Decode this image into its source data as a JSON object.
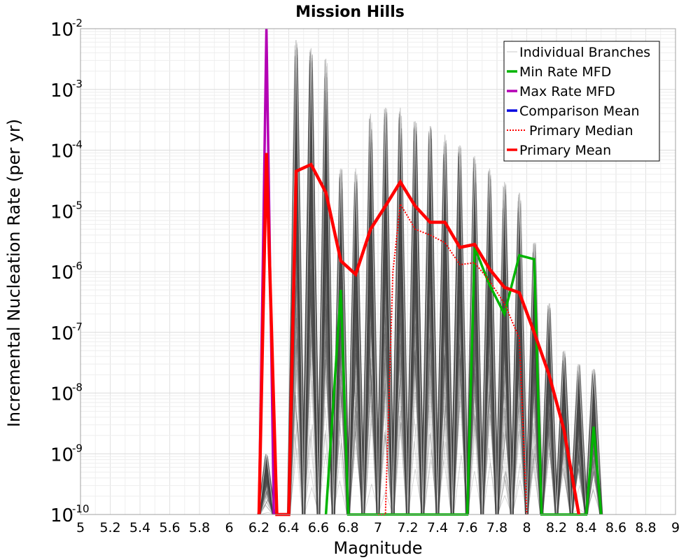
{
  "chart_data": {
    "type": "line",
    "title": "Mission Hills",
    "xlabel": "Magnitude",
    "ylabel": "Incremental Nucleation Rate (per yr)",
    "xlim": [
      5,
      9
    ],
    "ylim": [
      1e-10,
      0.01
    ],
    "yscale": "log",
    "grid": true,
    "legend_position": "top-right",
    "x_ticks": [
      "5",
      "5.2",
      "5.4",
      "5.6",
      "5.8",
      "6",
      "6.2",
      "6.4",
      "6.6",
      "6.8",
      "7",
      "7.2",
      "7.4",
      "7.6",
      "7.8",
      "8",
      "8.2",
      "8.4",
      "8.6",
      "8.8",
      "9"
    ],
    "y_ticks": [
      {
        "base": "10",
        "exp": "-10",
        "value": 1e-10
      },
      {
        "base": "10",
        "exp": "-9",
        "value": 1e-09
      },
      {
        "base": "10",
        "exp": "-8",
        "value": 1e-08
      },
      {
        "base": "10",
        "exp": "-7",
        "value": 1e-07
      },
      {
        "base": "10",
        "exp": "-6",
        "value": 1e-06
      },
      {
        "base": "10",
        "exp": "-5",
        "value": 1e-05
      },
      {
        "base": "10",
        "exp": "-4",
        "value": 0.0001
      },
      {
        "base": "10",
        "exp": "-3",
        "value": 0.001
      },
      {
        "base": "10",
        "exp": "-2",
        "value": 0.01
      }
    ],
    "branch_envelope": {
      "x": [
        6.25,
        6.35,
        6.45,
        6.55,
        6.65,
        6.75,
        6.85,
        6.95,
        7.05,
        7.15,
        7.25,
        7.35,
        7.45,
        7.55,
        7.65,
        7.75,
        7.85,
        7.95,
        8.05,
        8.15,
        8.25,
        8.35,
        8.45
      ],
      "max": [
        1e-09,
        1e-10,
        0.0065,
        0.0048,
        0.0032,
        5e-05,
        5e-05,
        0.0004,
        0.0005,
        0.0005,
        0.0003,
        0.00025,
        0.00018,
        0.00012,
        8e-05,
        5e-05,
        3e-05,
        2e-05,
        3e-06,
        3e-07,
        5e-08,
        3e-08,
        2.5e-08
      ]
    },
    "series": [
      {
        "name": "Individual Branches",
        "color": "#c8c8c8",
        "style": "thin"
      },
      {
        "name": "Min Rate MFD",
        "color": "#00b400",
        "style": "solid",
        "points": [
          [
            6.65,
            1e-10
          ],
          [
            6.75,
            5e-07
          ],
          [
            6.8,
            1e-10
          ],
          [
            7.6,
            1e-10
          ],
          [
            7.65,
            2.5e-06
          ],
          [
            7.75,
            6e-07
          ],
          [
            7.85,
            2e-07
          ],
          [
            7.95,
            1.85e-06
          ],
          [
            8.05,
            1.6e-06
          ],
          [
            8.1,
            1e-10
          ],
          [
            8.4,
            1e-10
          ],
          [
            8.45,
            2.8e-09
          ],
          [
            8.5,
            1e-10
          ]
        ]
      },
      {
        "name": "Max Rate MFD",
        "color": "#b400b4",
        "style": "solid",
        "points": [
          [
            6.2,
            1e-10
          ],
          [
            6.25,
            0.01
          ],
          [
            6.3,
            1e-10
          ]
        ]
      },
      {
        "name": "Comparison Mean",
        "color": "#0000e0",
        "style": "solid",
        "points": []
      },
      {
        "name": "Primary Median",
        "color": "#ff0000",
        "style": "dotted",
        "points": [
          [
            7.0,
            1e-10
          ],
          [
            7.05,
            1e-10
          ],
          [
            7.1,
            1e-06
          ],
          [
            7.15,
            1.3e-05
          ],
          [
            7.25,
            5e-06
          ],
          [
            7.35,
            4e-06
          ],
          [
            7.45,
            3e-06
          ],
          [
            7.55,
            1.3e-06
          ],
          [
            7.65,
            1.4e-06
          ],
          [
            7.75,
            7e-07
          ],
          [
            7.85,
            3e-07
          ],
          [
            7.95,
            8e-08
          ],
          [
            8.0,
            1e-10
          ]
        ]
      },
      {
        "name": "Primary Mean",
        "color": "#ff0000",
        "style": "thick",
        "points": [
          [
            6.2,
            1e-10
          ],
          [
            6.25,
            9e-05
          ],
          [
            6.32,
            1e-10
          ],
          [
            6.4,
            1e-10
          ],
          [
            6.45,
            4.5e-05
          ],
          [
            6.55,
            5.8e-05
          ],
          [
            6.65,
            2e-05
          ],
          [
            6.75,
            1.5e-06
          ],
          [
            6.85,
            9e-07
          ],
          [
            6.95,
            5e-06
          ],
          [
            7.05,
            1.2e-05
          ],
          [
            7.15,
            3e-05
          ],
          [
            7.25,
            1.2e-05
          ],
          [
            7.35,
            6.5e-06
          ],
          [
            7.45,
            6.5e-06
          ],
          [
            7.55,
            2.5e-06
          ],
          [
            7.65,
            2.8e-06
          ],
          [
            7.75,
            1.1e-06
          ],
          [
            7.85,
            5.5e-07
          ],
          [
            7.95,
            4.5e-07
          ],
          [
            8.05,
            1e-07
          ],
          [
            8.15,
            2e-08
          ],
          [
            8.25,
            2.5e-09
          ],
          [
            8.35,
            1e-10
          ]
        ]
      }
    ]
  }
}
